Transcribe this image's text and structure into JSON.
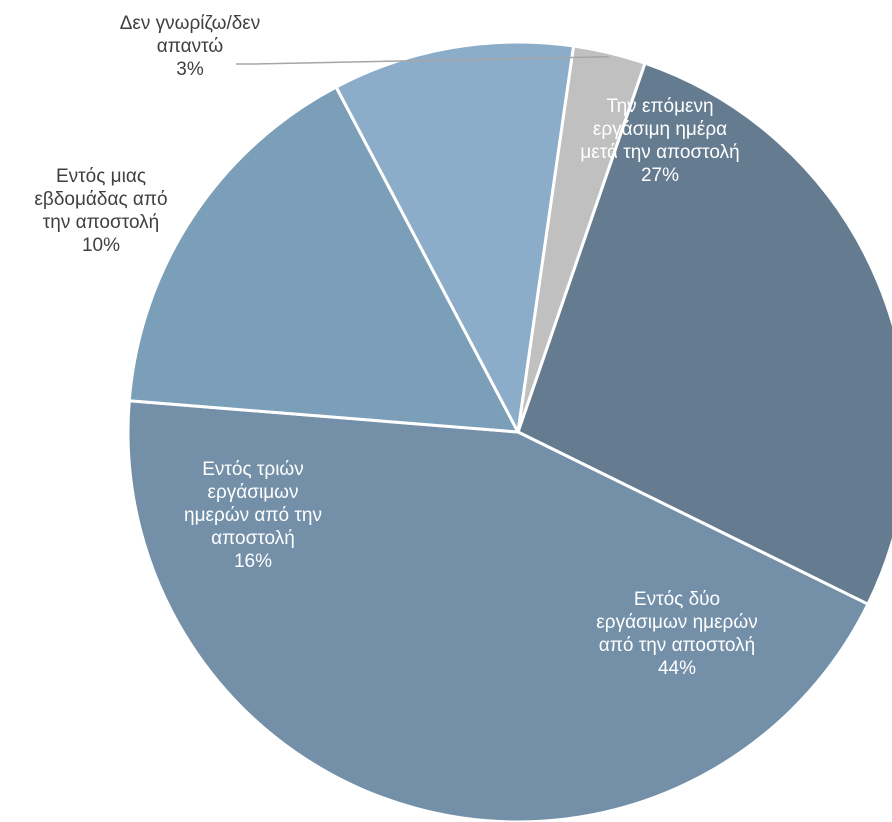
{
  "chart_data": {
    "type": "pie",
    "title": "",
    "slices": [
      {
        "label_lines": [
          "Την επόμενη",
          "εργάσιμη ημέρα",
          "μετά την αποστολή"
        ],
        "value": 27,
        "value_label": "27%",
        "color": "#647b90",
        "label_color": "#ffffff"
      },
      {
        "label_lines": [
          "Εντός δύο",
          "εργάσιμων ημερών",
          "από την αποστολή"
        ],
        "value": 44,
        "value_label": "44%",
        "color": "#7390a8",
        "label_color": "#ffffff"
      },
      {
        "label_lines": [
          "Εντός τριών",
          "εργάσιμων",
          "ημερών από την",
          "αποστολή"
        ],
        "value": 16,
        "value_label": "16%",
        "color": "#7b9eb9",
        "label_color": "#ffffff"
      },
      {
        "label_lines": [
          "Εντός μιας",
          "εβδομάδας από",
          "την αποστολή"
        ],
        "value": 10,
        "value_label": "10%",
        "color": "#8cadc9",
        "label_color": "#404040"
      },
      {
        "label_lines": [
          "Δεν γνωρίζω/δεν",
          "απαντώ"
        ],
        "value": 3,
        "value_label": "3%",
        "color": "#c0c0c0",
        "label_color": "#404040"
      }
    ],
    "start_angle_deg": 19,
    "direction": "clockwise",
    "slice_border_color": "#ffffff",
    "leader_line_color": "#a6a6a6"
  }
}
